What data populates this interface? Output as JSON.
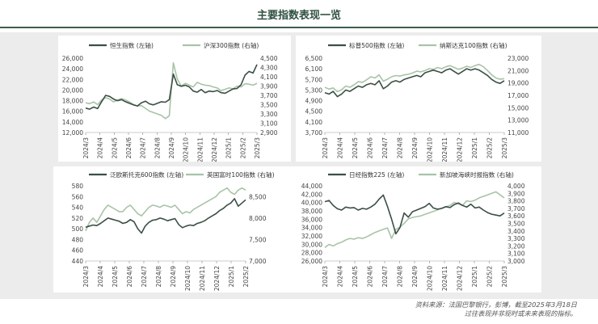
{
  "header": {
    "title": "主要指数表现一览"
  },
  "footer": {
    "line1": "资料来源：法国巴黎银行，彭博，截至2025年3月18日",
    "line2": "过往表现并非现时或未来表现的指标。"
  },
  "colors": {
    "dark": "#3b4f45",
    "light": "#a9c3a9",
    "accent_rule": "#3d5d4b"
  },
  "chart_data": [
    {
      "id": "c1",
      "type": "line",
      "x_tick_labels": [
        "2024/3",
        "2024/4",
        "2024/5",
        "2024/6",
        "2024/7",
        "2024/8",
        "2024/9",
        "2024/10",
        "2024/11",
        "2024/12",
        "2025/1",
        "2025/2",
        "2025/3"
      ],
      "y_left": {
        "ticks": [
          "12,000",
          "14,000",
          "16,000",
          "18,000",
          "20,000",
          "22,000",
          "24,000",
          "26,000"
        ],
        "min": 12000,
        "max": 26000
      },
      "y_right": {
        "ticks": [
          "2,900",
          "3,100",
          "3,300",
          "3,500",
          "3,700",
          "3,900",
          "4,100",
          "4,300",
          "4,500"
        ],
        "min": 2900,
        "max": 4500
      },
      "series": [
        {
          "name": "恒生指数 (左轴)",
          "axis": "left",
          "color": "dark",
          "values": [
            16600,
            16400,
            16800,
            16500,
            17800,
            19000,
            18800,
            18300,
            18000,
            18200,
            17800,
            17500,
            17200,
            17000,
            17600,
            17900,
            17400,
            17200,
            17500,
            17800,
            17700,
            18200,
            23000,
            21000,
            20700,
            20900,
            20600,
            19800,
            19600,
            20100,
            19500,
            19800,
            19700,
            19900,
            19500,
            19400,
            19800,
            20200,
            20300,
            21000,
            22800,
            23500,
            23200,
            24800
          ]
        },
        {
          "name": "沪深300指数 (右轴)",
          "axis": "right",
          "color": "light",
          "values": [
            3540,
            3520,
            3560,
            3500,
            3600,
            3650,
            3620,
            3560,
            3600,
            3630,
            3600,
            3560,
            3500,
            3470,
            3480,
            3420,
            3360,
            3330,
            3300,
            3270,
            3200,
            3260,
            4400,
            4050,
            3900,
            3960,
            3920,
            3880,
            3980,
            3940,
            3920,
            3910,
            3880,
            3860,
            3800,
            3830,
            3860,
            3840,
            3900,
            3880,
            3950,
            3940,
            3920,
            3960
          ]
        }
      ]
    },
    {
      "id": "c2",
      "type": "line",
      "x_tick_labels": [
        "2024/3",
        "2024/4",
        "2024/5",
        "2024/6",
        "2024/7",
        "2024/8",
        "2024/9",
        "2024/10",
        "2024/11",
        "2024/12",
        "2025/1",
        "2025/2",
        "2025/3"
      ],
      "y_left": {
        "ticks": [
          "3,700",
          "4,100",
          "4,500",
          "4,900",
          "5,300",
          "5,700",
          "6,100",
          "6,500"
        ],
        "min": 3700,
        "max": 6500
      },
      "y_right": {
        "ticks": [
          "11,000",
          "13,000",
          "15,000",
          "17,000",
          "19,000",
          "21,000",
          "23,000"
        ],
        "min": 11000,
        "max": 23000
      },
      "series": [
        {
          "name": "标普500指数 (左轴)",
          "axis": "left",
          "color": "dark",
          "values": [
            5200,
            5150,
            5250,
            5050,
            5150,
            5300,
            5250,
            5350,
            5450,
            5400,
            5500,
            5550,
            5500,
            5650,
            5350,
            5450,
            5600,
            5650,
            5600,
            5700,
            5750,
            5800,
            5850,
            5800,
            5950,
            6000,
            6050,
            6000,
            5950,
            6050,
            6100,
            6000,
            5900,
            6000,
            6100,
            6050,
            6100,
            6050,
            5950,
            5850,
            5700,
            5600,
            5550,
            5650
          ]
        },
        {
          "name": "纳斯达克100指数 (右轴)",
          "axis": "right",
          "color": "light",
          "values": [
            18300,
            18000,
            18200,
            17600,
            17900,
            18500,
            18300,
            18700,
            19200,
            19100,
            19500,
            20000,
            19800,
            20300,
            19300,
            19600,
            20000,
            20200,
            20100,
            20300,
            20400,
            20600,
            20900,
            20800,
            21000,
            21300,
            21200,
            21500,
            21300,
            21600,
            21800,
            21500,
            21200,
            21400,
            21700,
            21500,
            21800,
            22000,
            21600,
            21000,
            20300,
            19800,
            19600,
            19700
          ]
        }
      ]
    },
    {
      "id": "c3",
      "type": "line",
      "x_tick_labels": [
        "2024/3",
        "2024/4",
        "2024/5",
        "2024/6",
        "2024/7",
        "2024/8",
        "2024/9",
        "2024/10",
        "2024/11",
        "2024/12",
        "2025/1",
        "2025/2"
      ],
      "y_left": {
        "ticks": [
          "440",
          "460",
          "480",
          "500",
          "520",
          "540",
          "560",
          "580"
        ],
        "min": 440,
        "max": 580
      },
      "y_right": {
        "ticks": [
          "7,000",
          "7,500",
          "8,000",
          "8,500"
        ],
        "min": 7000,
        "max": 8750
      },
      "series": [
        {
          "name": "泛欧斯托克600指数 (左轴)",
          "axis": "left",
          "color": "dark",
          "values": [
            503,
            505,
            507,
            506,
            510,
            515,
            520,
            518,
            516,
            514,
            510,
            512,
            517,
            513,
            500,
            492,
            505,
            512,
            516,
            517,
            520,
            518,
            515,
            517,
            519,
            508,
            502,
            505,
            507,
            506,
            510,
            512,
            515,
            520,
            524,
            528,
            534,
            538,
            544,
            548,
            556,
            542,
            548,
            554
          ]
        },
        {
          "name": "英国富时100指数 (右轴)",
          "axis": "right",
          "color": "light",
          "values": [
            7700,
            7900,
            8000,
            7900,
            8050,
            8200,
            8300,
            8250,
            8200,
            8150,
            8150,
            8250,
            8300,
            8200,
            8100,
            8050,
            8150,
            8250,
            8300,
            8280,
            8250,
            8300,
            8280,
            8250,
            8300,
            8200,
            8100,
            8150,
            8120,
            8200,
            8250,
            8300,
            8350,
            8400,
            8450,
            8500,
            8600,
            8650,
            8700,
            8600,
            8550,
            8650,
            8700,
            8650
          ]
        }
      ]
    },
    {
      "id": "c4",
      "type": "line",
      "x_tick_labels": [
        "2024/3",
        "2024/4",
        "2024/5",
        "2024/6",
        "2024/7",
        "2024/8",
        "2024/9",
        "2024/10",
        "2024/11",
        "2024/12",
        "2025/1",
        "2025/2",
        "2025/3"
      ],
      "y_left": {
        "ticks": [
          "26,000",
          "28,000",
          "30,000",
          "32,000",
          "34,000",
          "36,000",
          "38,000",
          "40,000",
          "42,000",
          "44,000"
        ],
        "min": 26000,
        "max": 44000
      },
      "y_right": {
        "ticks": [
          "3,000",
          "3,100",
          "3,200",
          "3,300",
          "3,400",
          "3,500",
          "3,600",
          "3,700",
          "3,800",
          "3,900",
          "4,000"
        ],
        "min": 3000,
        "max": 4000
      },
      "series": [
        {
          "name": "日经指数225 (左轴)",
          "axis": "left",
          "color": "dark",
          "values": [
            40200,
            40500,
            39300,
            38500,
            38200,
            38900,
            38700,
            38800,
            38200,
            38600,
            38400,
            38900,
            39600,
            40800,
            41800,
            39100,
            36000,
            32500,
            34000,
            37500,
            36500,
            37800,
            38200,
            38600,
            39000,
            39800,
            38700,
            38400,
            38600,
            39000,
            38800,
            39500,
            39900,
            39300,
            38900,
            39600,
            38700,
            38900,
            38200,
            37600,
            37200,
            37000,
            36800,
            37500
          ]
        },
        {
          "name": "新加坡海峡时报指数 (右轴)",
          "axis": "right",
          "color": "light",
          "values": [
            3180,
            3220,
            3200,
            3230,
            3250,
            3280,
            3300,
            3290,
            3310,
            3300,
            3320,
            3350,
            3380,
            3400,
            3420,
            3440,
            3300,
            3420,
            3450,
            3500,
            3560,
            3580,
            3590,
            3600,
            3620,
            3640,
            3660,
            3680,
            3700,
            3720,
            3740,
            3780,
            3760,
            3740,
            3800,
            3790,
            3810,
            3840,
            3860,
            3880,
            3900,
            3920,
            3880,
            3840
          ]
        }
      ]
    }
  ]
}
